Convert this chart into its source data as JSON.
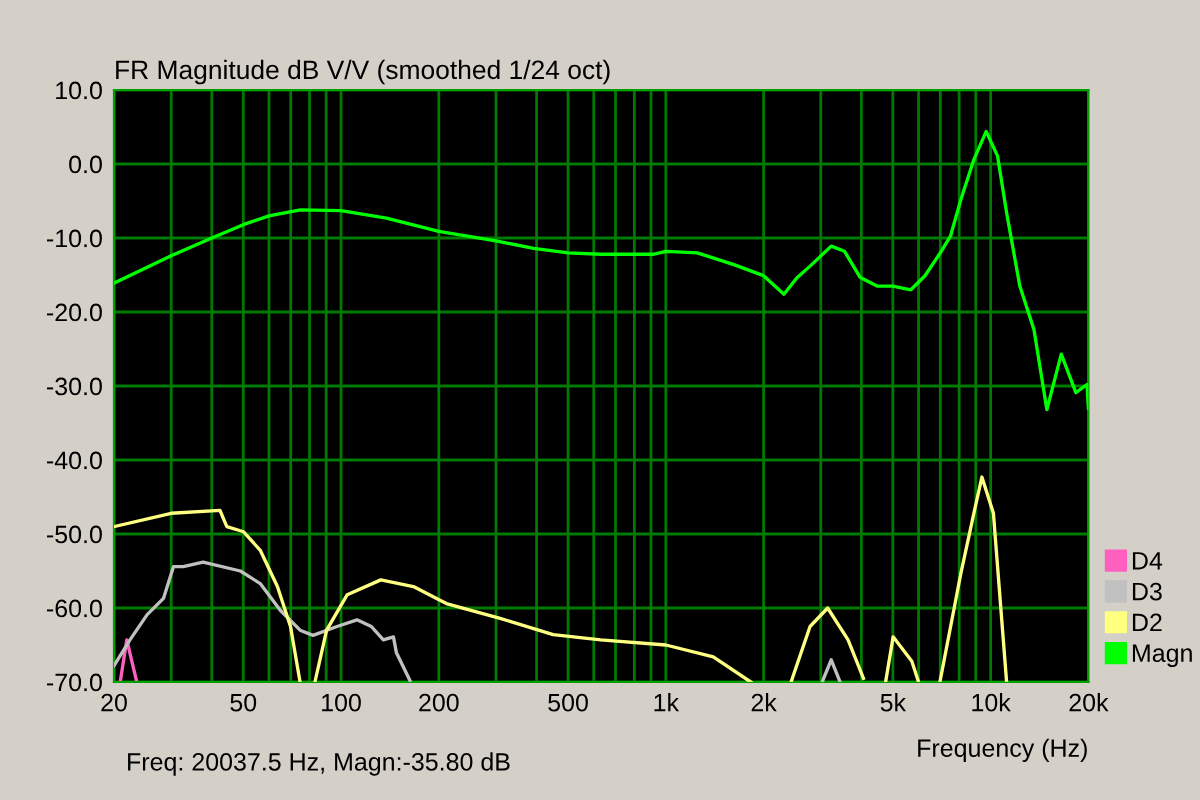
{
  "chart_data": {
    "type": "line",
    "title": "FR Magnitude dB V/V (smoothed 1/24 oct)",
    "xlabel": "Frequency (Hz)",
    "annotations": [
      "Freq: 20037.5 Hz, Magn:-35.80 dB"
    ],
    "log": "x",
    "grid": true,
    "legend": "bottom right",
    "line_style": "solid",
    "marker": "none",
    "xlim": [
      20,
      20000
    ],
    "ylim": [
      -70,
      10
    ],
    "xticks": [
      20,
      {
        "value": 30,
        "label": null
      },
      {
        "value": 40,
        "label": null
      },
      50,
      {
        "value": 60,
        "label": null
      },
      {
        "value": 70,
        "label": null
      },
      {
        "value": 80,
        "label": null
      },
      {
        "value": 90,
        "label": null
      },
      100,
      200,
      {
        "value": 300,
        "label": null
      },
      {
        "value": 400,
        "label": null
      },
      500,
      {
        "value": 600,
        "label": null
      },
      {
        "value": 700,
        "label": null
      },
      {
        "value": 800,
        "label": null
      },
      {
        "value": 900,
        "label": null
      },
      {
        "value": 1000,
        "label": "1k"
      },
      {
        "value": 2000,
        "label": "2k"
      },
      {
        "value": 3000,
        "label": null
      },
      {
        "value": 4000,
        "label": null
      },
      {
        "value": 5000,
        "label": "5k"
      },
      {
        "value": 6000,
        "label": null
      },
      {
        "value": 7000,
        "label": null
      },
      {
        "value": 8000,
        "label": null
      },
      {
        "value": 9000,
        "label": null
      },
      {
        "value": 10000,
        "label": "10k"
      },
      {
        "value": 20000,
        "label": "20k"
      }
    ],
    "yticks": [
      {
        "value": 10,
        "label": "10.0"
      },
      {
        "value": 0,
        "label": "0.0"
      },
      {
        "value": -10,
        "label": "-10.0"
      },
      {
        "value": -20,
        "label": "-20.0"
      },
      {
        "value": -30,
        "label": "-30.0"
      },
      {
        "value": -40,
        "label": "-40.0"
      },
      {
        "value": -50,
        "label": "-50.0"
      },
      {
        "value": -60,
        "label": "-60.0"
      },
      {
        "value": -70,
        "label": "-70.0"
      }
    ],
    "series": [
      {
        "name": "D4",
        "color": "#ff60c0",
        "x": [
          20.9,
          21.9,
          23.5
        ],
        "values": [
          -70,
          -64.3,
          -70
        ]
      },
      {
        "name": "D3",
        "color": "#c0c0c0",
        "x": [
          20,
          22.4,
          25.3,
          28.4,
          30.5,
          32.7,
          37.6,
          49,
          56.4,
          65,
          74.8,
          82,
          97.2,
          112,
          124,
          135,
          145,
          148,
          163,
          2000,
          3030,
          3230,
          3440
        ],
        "values": [
          -67.8,
          -64.3,
          -60.9,
          -58.7,
          -54.4,
          -54.4,
          -53.8,
          -55,
          -56.7,
          -60.3,
          -63,
          -63.7,
          -62.5,
          -61.6,
          -62.5,
          -64.3,
          -63.9,
          -66,
          -69.8,
          null,
          -70,
          -67,
          -70
        ]
      },
      {
        "name": "D2",
        "color": "#ffff80",
        "x": [
          20,
          30,
          42.4,
          44.5,
          50.1,
          56.4,
          63.7,
          69.9,
          74.8,
          79,
          83.1,
          90.3,
          104.5,
          132.6,
          167,
          211,
          309,
          450,
          630,
          1000,
          1400,
          1826,
          2100,
          2430,
          2780,
          3150,
          3640,
          4060,
          4400,
          4750,
          5010,
          5720,
          6000,
          6500,
          6980,
          8100,
          8880,
          9400,
          10200,
          10700,
          11200
        ],
        "values": [
          -49,
          -47.2,
          -46.8,
          -49,
          -49.7,
          -52.2,
          -57.1,
          -62.5,
          -70,
          null,
          -70,
          -63,
          -58.2,
          -56.2,
          -57.1,
          -59.4,
          -61.4,
          -63.6,
          -64.3,
          -65,
          -66.6,
          -70,
          null,
          -70,
          -62.5,
          -60,
          -64.3,
          -69.5,
          null,
          -70,
          -63.9,
          -67.2,
          -70,
          null,
          -70,
          -55.3,
          -47.2,
          -42.3,
          -47.2,
          -58.9,
          -70
        ]
      },
      {
        "name": "Magn",
        "color": "#00ff00",
        "x": [
          20,
          30,
          40,
          50,
          60,
          75,
          100,
          138,
          200,
          300,
          392,
          500,
          630,
          914,
          1000,
          1250,
          1620,
          2000,
          2310,
          2530,
          2780,
          3230,
          3550,
          3960,
          4470,
          5000,
          5680,
          6280,
          7000,
          7530,
          8100,
          8880,
          9690,
          10500,
          11200,
          12300,
          13600,
          14900,
          16500,
          18300,
          19800,
          20000
        ],
        "values": [
          -16.1,
          -12.4,
          -10,
          -8.2,
          -7,
          -6.2,
          -6.3,
          -7.3,
          -9.1,
          -10.4,
          -11.4,
          -12,
          -12.2,
          -12.2,
          -11.8,
          -12,
          -13.6,
          -15.1,
          -17.6,
          -15.4,
          -13.8,
          -11.1,
          -11.8,
          -15.3,
          -16.5,
          -16.5,
          -17,
          -15.1,
          -12,
          -9.7,
          -4.8,
          0.6,
          4.4,
          1.1,
          -6.6,
          -16.5,
          -22.4,
          -33.2,
          -25.7,
          -30.9,
          -29.8,
          -33
        ]
      }
    ]
  }
}
